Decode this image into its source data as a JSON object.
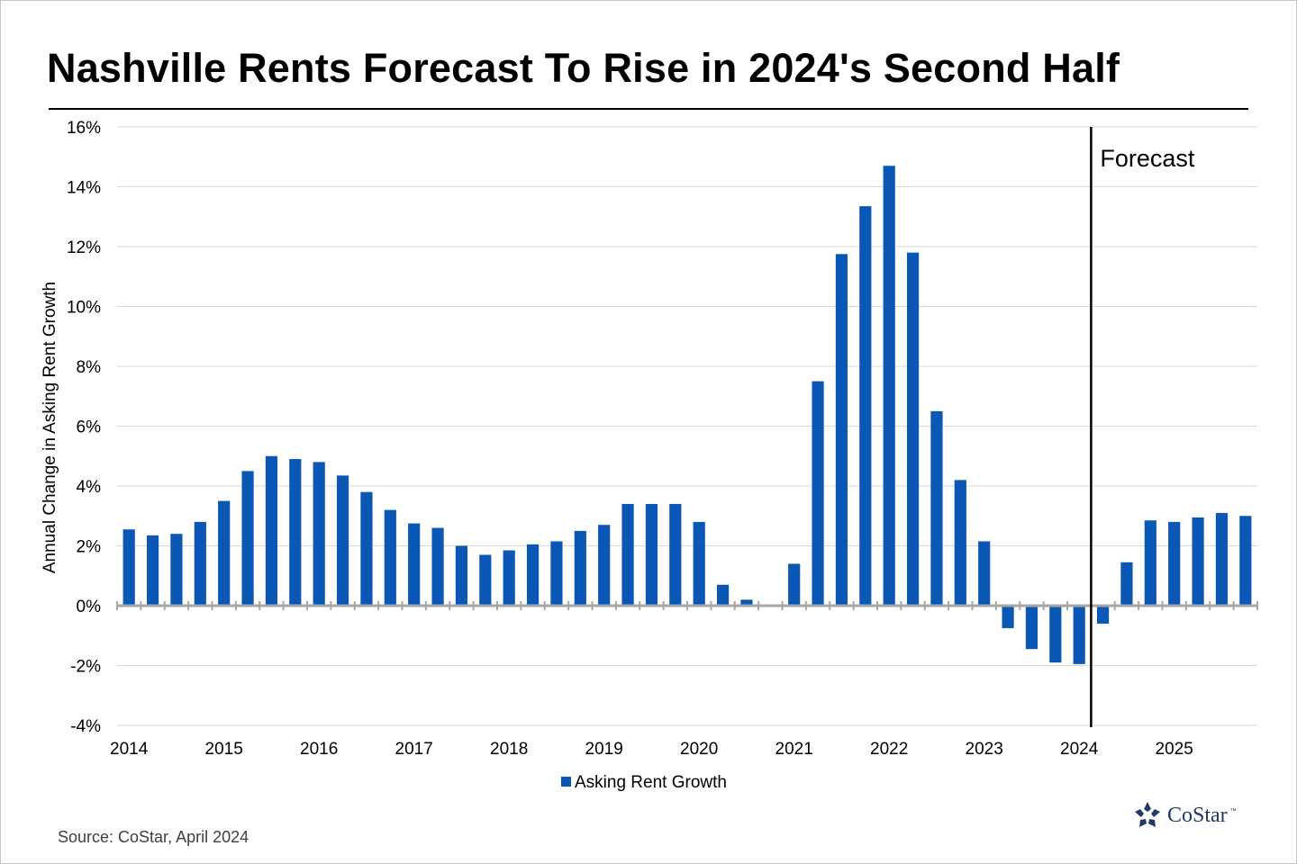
{
  "title": "Nashville Rents Forecast To Rise in 2024's Second Half",
  "source": "Source: CoStar, April 2024",
  "logo": {
    "text": "CoStar",
    "tm": "™"
  },
  "colors": {
    "bar": "#0b57b5",
    "grid": "#d9d9d9",
    "zero_axis": "#a6a6a6",
    "text": "#000000"
  },
  "chart_data": {
    "type": "bar",
    "ylabel": "Annual Change in Asking Rent Growth",
    "ylim": [
      -4,
      16
    ],
    "yticks": [
      -4,
      -2,
      0,
      2,
      4,
      6,
      8,
      10,
      12,
      14,
      16
    ],
    "ytick_labels": [
      "-4%",
      "-2%",
      "0%",
      "2%",
      "4%",
      "6%",
      "8%",
      "10%",
      "12%",
      "14%",
      "16%"
    ],
    "xtick_labels": [
      "2014",
      "2015",
      "2016",
      "2017",
      "2018",
      "2019",
      "2020",
      "2021",
      "2022",
      "2023",
      "2024",
      "2025"
    ],
    "quarters_per_year": 4,
    "start_year": 2014,
    "grid": true,
    "legend": {
      "position": "bottom-center",
      "entries": [
        "Asking Rent Growth"
      ]
    },
    "annotation": {
      "label": "Forecast",
      "type": "vertical-line",
      "after_category": "2024 Q1"
    },
    "categories": [
      "2014 Q1",
      "2014 Q2",
      "2014 Q3",
      "2014 Q4",
      "2015 Q1",
      "2015 Q2",
      "2015 Q3",
      "2015 Q4",
      "2016 Q1",
      "2016 Q2",
      "2016 Q3",
      "2016 Q4",
      "2017 Q1",
      "2017 Q2",
      "2017 Q3",
      "2017 Q4",
      "2018 Q1",
      "2018 Q2",
      "2018 Q3",
      "2018 Q4",
      "2019 Q1",
      "2019 Q2",
      "2019 Q3",
      "2019 Q4",
      "2020 Q1",
      "2020 Q2",
      "2020 Q3",
      "2020 Q4",
      "2021 Q1",
      "2021 Q2",
      "2021 Q3",
      "2021 Q4",
      "2022 Q1",
      "2022 Q2",
      "2022 Q3",
      "2022 Q4",
      "2023 Q1",
      "2023 Q2",
      "2023 Q3",
      "2023 Q4",
      "2024 Q1",
      "2024 Q2",
      "2024 Q3",
      "2024 Q4",
      "2025 Q1",
      "2025 Q2",
      "2025 Q3",
      "2025 Q4"
    ],
    "series": [
      {
        "name": "Asking Rent Growth",
        "values": [
          2.55,
          2.35,
          2.4,
          2.8,
          3.5,
          4.5,
          5.0,
          4.9,
          4.8,
          4.35,
          3.8,
          3.2,
          2.75,
          2.6,
          2.0,
          1.7,
          1.85,
          2.05,
          2.15,
          2.5,
          2.7,
          3.4,
          3.4,
          3.4,
          2.8,
          0.7,
          0.2,
          0.0,
          1.4,
          7.5,
          11.75,
          13.35,
          14.7,
          11.8,
          6.5,
          4.2,
          2.15,
          -0.75,
          -1.45,
          -1.9,
          -1.95,
          -0.6,
          1.45,
          2.85,
          2.8,
          2.95,
          3.1,
          3.0
        ]
      }
    ]
  }
}
